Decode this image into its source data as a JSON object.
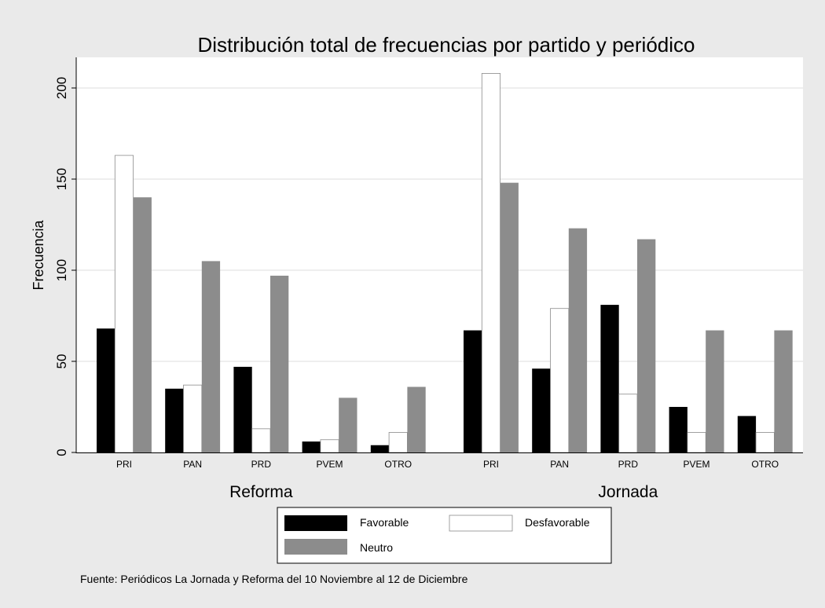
{
  "chart_data": {
    "type": "bar",
    "title": "Distribución total de frecuencias por partido y periódico",
    "ylabel": "Frecuencia",
    "xlabel": "",
    "ylim": [
      0,
      220
    ],
    "yticks": [
      0,
      50,
      100,
      150,
      200
    ],
    "grid": true,
    "legend_position": "bottom",
    "groups": [
      {
        "name": "Reforma",
        "categories": [
          "PRI",
          "PAN",
          "PRD",
          "PVEM",
          "OTRO"
        ],
        "series": [
          {
            "name": "Favorable",
            "color": "#000000",
            "values": [
              68,
              35,
              47,
              6,
              4
            ]
          },
          {
            "name": "Desfavorable",
            "color": "#ffffff",
            "values": [
              163,
              37,
              13,
              7,
              11
            ]
          },
          {
            "name": "Neutro",
            "color": "#8c8c8c",
            "values": [
              140,
              105,
              97,
              30,
              36
            ]
          }
        ]
      },
      {
        "name": "Jornada",
        "categories": [
          "PRI",
          "PAN",
          "PRD",
          "PVEM",
          "OTRO"
        ],
        "series": [
          {
            "name": "Favorable",
            "color": "#000000",
            "values": [
              67,
              46,
              81,
              25,
              20
            ]
          },
          {
            "name": "Desfavorable",
            "color": "#ffffff",
            "values": [
              208,
              79,
              32,
              11,
              11
            ]
          },
          {
            "name": "Neutro",
            "color": "#8c8c8c",
            "values": [
              148,
              123,
              117,
              67,
              67
            ]
          }
        ]
      }
    ],
    "legend": [
      {
        "name": "Favorable",
        "color": "#000000"
      },
      {
        "name": "Desfavorable",
        "color": "#ffffff"
      },
      {
        "name": "Neutro",
        "color": "#8c8c8c"
      }
    ],
    "note": "Fuente: Periódicos La Jornada y Reforma del 10 Noviembre al 12 de Diciembre"
  }
}
